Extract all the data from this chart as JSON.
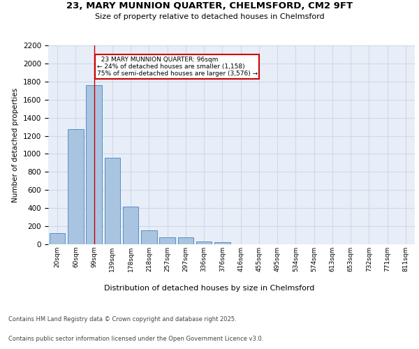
{
  "title_line1": "23, MARY MUNNION QUARTER, CHELMSFORD, CM2 9FT",
  "title_line2": "Size of property relative to detached houses in Chelmsford",
  "xlabel": "Distribution of detached houses by size in Chelmsford",
  "ylabel": "Number of detached properties",
  "categories": [
    "20sqm",
    "60sqm",
    "99sqm",
    "139sqm",
    "178sqm",
    "218sqm",
    "257sqm",
    "297sqm",
    "336sqm",
    "376sqm",
    "416sqm",
    "455sqm",
    "495sqm",
    "534sqm",
    "574sqm",
    "613sqm",
    "653sqm",
    "732sqm",
    "771sqm",
    "811sqm"
  ],
  "values": [
    120,
    1275,
    1760,
    960,
    420,
    155,
    75,
    75,
    30,
    20,
    0,
    0,
    0,
    0,
    0,
    0,
    0,
    0,
    0,
    0
  ],
  "bar_color": "#a8c4e0",
  "bar_edge_color": "#5a8fc0",
  "grid_color": "#d0d8e8",
  "background_color": "#e8eef8",
  "property_line_x": 2,
  "property_line_color": "#cc0000",
  "annotation_text": "  23 MARY MUNNION QUARTER: 96sqm\n← 24% of detached houses are smaller (1,158)\n75% of semi-detached houses are larger (3,576) →",
  "annotation_box_color": "#cc0000",
  "ylim": [
    0,
    2200
  ],
  "yticks": [
    0,
    200,
    400,
    600,
    800,
    1000,
    1200,
    1400,
    1600,
    1800,
    2000,
    2200
  ],
  "footer_line1": "Contains HM Land Registry data © Crown copyright and database right 2025.",
  "footer_line2": "Contains public sector information licensed under the Open Government Licence v3.0.",
  "n_bins": 20
}
